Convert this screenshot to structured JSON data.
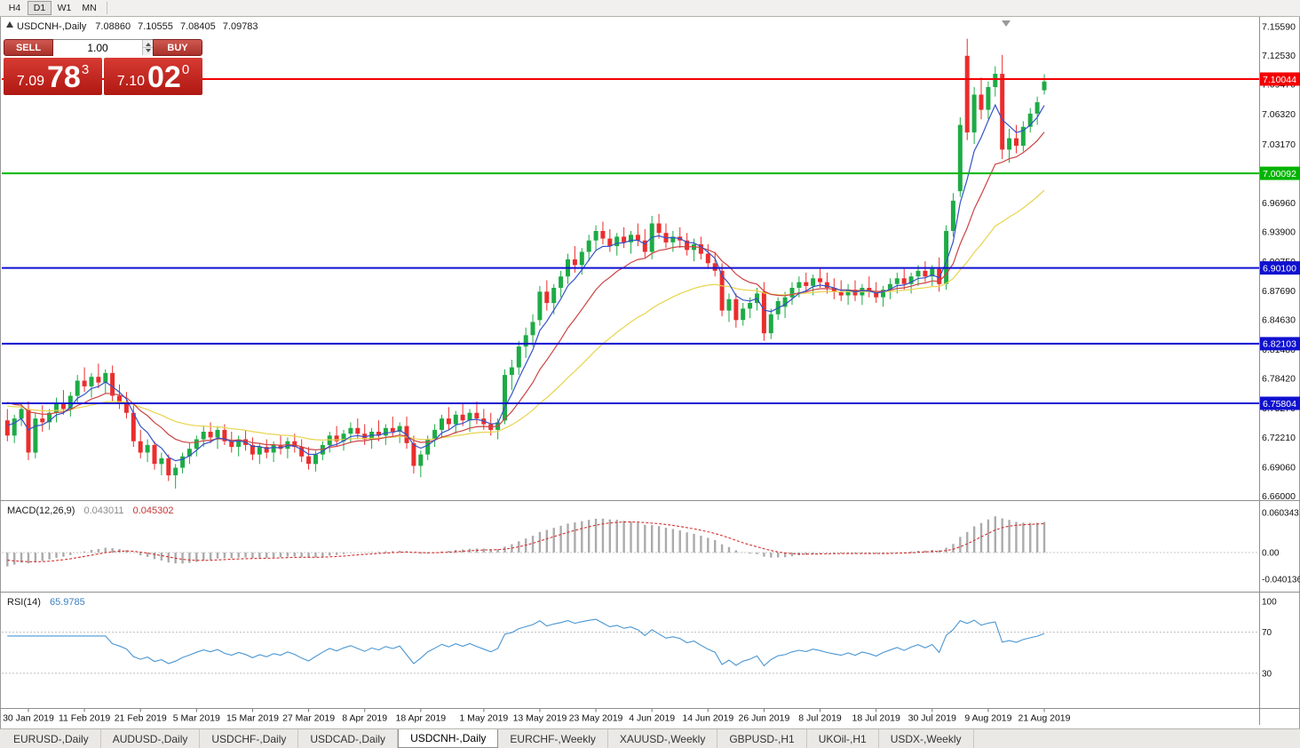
{
  "toolbar": {
    "timeframes": [
      "H4",
      "D1",
      "W1",
      "MN"
    ],
    "active": "D1"
  },
  "chart_header": {
    "symbol": "USDCNH-,Daily",
    "open": "7.08860",
    "high": "7.10555",
    "low": "7.08405",
    "close": "7.09783"
  },
  "trade_panel": {
    "sell_label": "SELL",
    "buy_label": "BUY",
    "volume": "1.00",
    "bid": {
      "prefix": "7.09",
      "pips": "78",
      "point": "3"
    },
    "ask": {
      "prefix": "7.10",
      "pips": "02",
      "point": "0"
    }
  },
  "levels": [
    {
      "name": "resistance-7-10044",
      "price": 7.10044,
      "label": "7.10044",
      "color": "#f40000"
    },
    {
      "name": "round-number-7-00092",
      "price": 7.00092,
      "label": "7.00092",
      "color": "#00b400"
    },
    {
      "name": "support-6-90100",
      "price": 6.901,
      "label": "6.90100",
      "color": "#1010d0"
    },
    {
      "name": "support-6-82103",
      "price": 6.82103,
      "label": "6.82103",
      "color": "#1010d0"
    },
    {
      "name": "support-6-75804",
      "price": 6.75804,
      "label": "6.75804",
      "color": "#1010d0"
    }
  ],
  "indicators": {
    "macd": {
      "label": "MACD(12,26,9)",
      "value_main": "0.043011",
      "value_signal": "0.045302",
      "params": {
        "fast": 12,
        "slow": 26,
        "signal": 9
      },
      "axis_labels": [
        {
          "text": "0.060343",
          "value": 0.060343
        },
        {
          "text": "0.00",
          "value": 0
        },
        {
          "text": "-0.040136",
          "value": -0.040136
        }
      ],
      "hist_color": "#ababab",
      "signal_color": "#d23030"
    },
    "rsi": {
      "label": "RSI(14)",
      "value": "65.9785",
      "period": 14,
      "axis_labels": [
        {
          "text": "100",
          "value": 100
        },
        {
          "text": "70",
          "value": 70
        },
        {
          "text": "30",
          "value": 30
        }
      ],
      "levels": [
        70,
        30
      ],
      "line_color": "#4a96d2"
    }
  },
  "tabs": [
    {
      "label": "EURUSD-,Daily",
      "active": false
    },
    {
      "label": "AUDUSD-,Daily",
      "active": false
    },
    {
      "label": "USDCHF-,Daily",
      "active": false
    },
    {
      "label": "USDCAD-,Daily",
      "active": false
    },
    {
      "label": "USDCNH-,Daily",
      "active": true
    },
    {
      "label": "EURCHF-,Weekly",
      "active": false
    },
    {
      "label": "XAUUSD-,Weekly",
      "active": false
    },
    {
      "label": "GBPUSD-,H1",
      "active": false
    },
    {
      "label": "UKOil-,H1",
      "active": false
    },
    {
      "label": "USDX-,Weekly",
      "active": false
    }
  ],
  "chart_data": {
    "type": "candlestick",
    "symbol": "USDCNH-,Daily",
    "timeframe": "Daily",
    "grid": false,
    "price_axis": {
      "top": 7.1633,
      "bottom": 6.6586,
      "tick_labels": [
        "7.15590",
        "7.12530",
        "7.09470",
        "7.06320",
        "7.03170",
        "7.00110",
        "6.96960",
        "6.93900",
        "6.90750",
        "6.87690",
        "6.84630",
        "6.81480",
        "6.78420",
        "6.75270",
        "6.72210",
        "6.69060",
        "6.66000"
      ]
    },
    "x_labels": [
      {
        "text": "30 Jan 2019",
        "index": 3
      },
      {
        "text": "11 Feb 2019",
        "index": 11
      },
      {
        "text": "21 Feb 2019",
        "index": 19
      },
      {
        "text": "5 Mar 2019",
        "index": 27
      },
      {
        "text": "15 Mar 2019",
        "index": 35
      },
      {
        "text": "27 Mar 2019",
        "index": 43
      },
      {
        "text": "8 Apr 2019",
        "index": 51
      },
      {
        "text": "18 Apr 2019",
        "index": 59
      },
      {
        "text": "1 May 2019",
        "index": 68
      },
      {
        "text": "13 May 2019",
        "index": 76
      },
      {
        "text": "23 May 2019",
        "index": 84
      },
      {
        "text": "4 Jun 2019",
        "index": 92
      },
      {
        "text": "14 Jun 2019",
        "index": 100
      },
      {
        "text": "26 Jun 2019",
        "index": 108
      },
      {
        "text": "8 Jul 2019",
        "index": 116
      },
      {
        "text": "18 Jul 2019",
        "index": 124
      },
      {
        "text": "30 Jul 2019",
        "index": 132
      },
      {
        "text": "9 Aug 2019",
        "index": 140
      },
      {
        "text": "21 Aug 2019",
        "index": 148
      }
    ],
    "colors": {
      "bull": "#1eab46",
      "bear": "#eb2d2d",
      "ma_fast": "#3452c8",
      "ma_mid": "#cc4444",
      "ma_slow": "#e8d44c"
    },
    "moving_averages": [
      {
        "name": "fast",
        "period": 5
      },
      {
        "name": "mid",
        "period": 13
      },
      {
        "name": "slow",
        "period": 34
      }
    ],
    "candles": [
      [
        6.74,
        6.752,
        6.718,
        6.724
      ],
      [
        6.724,
        6.746,
        6.716,
        6.742
      ],
      [
        6.742,
        6.758,
        6.734,
        6.752
      ],
      [
        6.752,
        6.76,
        6.698,
        6.706
      ],
      [
        6.706,
        6.748,
        6.7,
        6.742
      ],
      [
        6.742,
        6.756,
        6.728,
        6.738
      ],
      [
        6.738,
        6.752,
        6.73,
        6.748
      ],
      [
        6.748,
        6.764,
        6.738,
        6.758
      ],
      [
        6.758,
        6.772,
        6.746,
        6.752
      ],
      [
        6.752,
        6.77,
        6.744,
        6.766
      ],
      [
        6.766,
        6.788,
        6.758,
        6.782
      ],
      [
        6.782,
        6.796,
        6.77,
        6.776
      ],
      [
        6.776,
        6.79,
        6.764,
        6.786
      ],
      [
        6.786,
        6.8,
        6.774,
        6.78
      ],
      [
        6.78,
        6.794,
        6.768,
        6.79
      ],
      [
        6.79,
        6.798,
        6.76,
        6.766
      ],
      [
        6.766,
        6.778,
        6.752,
        6.758
      ],
      [
        6.758,
        6.77,
        6.742,
        6.748
      ],
      [
        6.748,
        6.756,
        6.712,
        6.718
      ],
      [
        6.718,
        6.73,
        6.7,
        6.706
      ],
      [
        6.706,
        6.72,
        6.696,
        6.714
      ],
      [
        6.714,
        6.718,
        6.688,
        6.694
      ],
      [
        6.694,
        6.706,
        6.682,
        6.7
      ],
      [
        6.7,
        6.704,
        6.676,
        6.682
      ],
      [
        6.682,
        6.694,
        6.668,
        6.69
      ],
      [
        6.69,
        6.706,
        6.684,
        6.702
      ],
      [
        6.702,
        6.716,
        6.694,
        6.71
      ],
      [
        6.71,
        6.724,
        6.702,
        6.72
      ],
      [
        6.72,
        6.734,
        6.712,
        6.728
      ],
      [
        6.728,
        6.738,
        6.716,
        6.722
      ],
      [
        6.722,
        6.734,
        6.71,
        6.73
      ],
      [
        6.73,
        6.736,
        6.714,
        6.718
      ],
      [
        6.718,
        6.728,
        6.706,
        6.712
      ],
      [
        6.712,
        6.724,
        6.702,
        6.72
      ],
      [
        6.72,
        6.73,
        6.708,
        6.714
      ],
      [
        6.714,
        6.722,
        6.698,
        6.704
      ],
      [
        6.704,
        6.716,
        6.694,
        6.712
      ],
      [
        6.712,
        6.72,
        6.7,
        6.706
      ],
      [
        6.706,
        6.718,
        6.696,
        6.714
      ],
      [
        6.714,
        6.724,
        6.704,
        6.71
      ],
      [
        6.71,
        6.722,
        6.7,
        6.718
      ],
      [
        6.718,
        6.726,
        6.706,
        6.712
      ],
      [
        6.712,
        6.72,
        6.696,
        6.702
      ],
      [
        6.702,
        6.712,
        6.688,
        6.694
      ],
      [
        6.694,
        6.708,
        6.686,
        6.704
      ],
      [
        6.704,
        6.718,
        6.698,
        6.714
      ],
      [
        6.714,
        6.728,
        6.706,
        6.724
      ],
      [
        6.724,
        6.734,
        6.712,
        6.718
      ],
      [
        6.718,
        6.73,
        6.708,
        6.726
      ],
      [
        6.726,
        6.738,
        6.716,
        6.732
      ],
      [
        6.732,
        6.742,
        6.72,
        6.726
      ],
      [
        6.726,
        6.736,
        6.714,
        6.72
      ],
      [
        6.72,
        6.732,
        6.71,
        6.728
      ],
      [
        6.728,
        6.74,
        6.718,
        6.724
      ],
      [
        6.724,
        6.736,
        6.714,
        6.732
      ],
      [
        6.732,
        6.744,
        6.722,
        6.728
      ],
      [
        6.728,
        6.738,
        6.716,
        6.734
      ],
      [
        6.734,
        6.744,
        6.71,
        6.716
      ],
      [
        6.716,
        6.724,
        6.684,
        6.692
      ],
      [
        6.692,
        6.708,
        6.68,
        6.704
      ],
      [
        6.704,
        6.724,
        6.698,
        6.72
      ],
      [
        6.72,
        6.736,
        6.712,
        6.73
      ],
      [
        6.73,
        6.746,
        6.722,
        6.742
      ],
      [
        6.742,
        6.754,
        6.73,
        6.736
      ],
      [
        6.736,
        6.75,
        6.726,
        6.746
      ],
      [
        6.746,
        6.758,
        6.734,
        6.74
      ],
      [
        6.74,
        6.752,
        6.728,
        6.748
      ],
      [
        6.748,
        6.76,
        6.736,
        6.742
      ],
      [
        6.742,
        6.752,
        6.73,
        6.736
      ],
      [
        6.736,
        6.748,
        6.724,
        6.73
      ],
      [
        6.73,
        6.742,
        6.72,
        6.738
      ],
      [
        6.74,
        6.794,
        6.736,
        6.788
      ],
      [
        6.788,
        6.804,
        6.772,
        6.796
      ],
      [
        6.796,
        6.824,
        6.788,
        6.818
      ],
      [
        6.818,
        6.838,
        6.806,
        6.83
      ],
      [
        6.83,
        6.852,
        6.818,
        6.844
      ],
      [
        6.846,
        6.882,
        6.84,
        6.876
      ],
      [
        6.876,
        6.888,
        6.856,
        6.864
      ],
      [
        6.864,
        6.884,
        6.852,
        6.88
      ],
      [
        6.88,
        6.898,
        6.87,
        6.892
      ],
      [
        6.892,
        6.916,
        6.884,
        6.91
      ],
      [
        6.91,
        6.924,
        6.896,
        6.904
      ],
      [
        6.904,
        6.922,
        6.894,
        6.918
      ],
      [
        6.918,
        6.936,
        6.908,
        6.93
      ],
      [
        6.93,
        6.946,
        6.92,
        6.94
      ],
      [
        6.94,
        6.95,
        6.926,
        6.932
      ],
      [
        6.932,
        6.942,
        6.918,
        6.924
      ],
      [
        6.924,
        6.938,
        6.914,
        6.934
      ],
      [
        6.934,
        6.944,
        6.922,
        6.928
      ],
      [
        6.928,
        6.94,
        6.916,
        6.936
      ],
      [
        6.936,
        6.948,
        6.924,
        6.93
      ],
      [
        6.93,
        6.942,
        6.912,
        6.918
      ],
      [
        6.918,
        6.956,
        6.91,
        6.948
      ],
      [
        6.948,
        6.958,
        6.932,
        6.938
      ],
      [
        6.938,
        6.948,
        6.922,
        6.928
      ],
      [
        6.928,
        6.94,
        6.918,
        6.934
      ],
      [
        6.934,
        6.944,
        6.922,
        6.93
      ],
      [
        6.93,
        6.938,
        6.914,
        6.92
      ],
      [
        6.92,
        6.932,
        6.908,
        6.926
      ],
      [
        6.926,
        6.934,
        6.91,
        6.916
      ],
      [
        6.916,
        6.926,
        6.9,
        6.906
      ],
      [
        6.906,
        6.918,
        6.892,
        6.898
      ],
      [
        6.898,
        6.906,
        6.85,
        6.856
      ],
      [
        6.856,
        6.874,
        6.844,
        6.868
      ],
      [
        6.868,
        6.874,
        6.838,
        6.846
      ],
      [
        6.846,
        6.864,
        6.84,
        6.858
      ],
      [
        6.858,
        6.87,
        6.848,
        6.864
      ],
      [
        6.864,
        6.88,
        6.856,
        6.874
      ],
      [
        6.876,
        6.886,
        6.824,
        6.832
      ],
      [
        6.832,
        6.858,
        6.826,
        6.852
      ],
      [
        6.852,
        6.87,
        6.846,
        6.866
      ],
      [
        6.86,
        6.876,
        6.848,
        6.87
      ],
      [
        6.87,
        6.886,
        6.862,
        6.88
      ],
      [
        6.88,
        6.892,
        6.87,
        6.886
      ],
      [
        6.886,
        6.896,
        6.876,
        6.882
      ],
      [
        6.882,
        6.894,
        6.872,
        6.89
      ],
      [
        6.89,
        6.9,
        6.88,
        6.886
      ],
      [
        6.886,
        6.896,
        6.874,
        6.88
      ],
      [
        6.88,
        6.89,
        6.868,
        6.876
      ],
      [
        6.876,
        6.888,
        6.866,
        6.872
      ],
      [
        6.872,
        6.884,
        6.862,
        6.878
      ],
      [
        6.878,
        6.888,
        6.866,
        6.872
      ],
      [
        6.872,
        6.884,
        6.862,
        6.88
      ],
      [
        6.88,
        6.892,
        6.87,
        6.876
      ],
      [
        6.876,
        6.886,
        6.864,
        6.87
      ],
      [
        6.87,
        6.882,
        6.86,
        6.878
      ],
      [
        6.878,
        6.89,
        6.868,
        6.884
      ],
      [
        6.884,
        6.896,
        6.874,
        6.89
      ],
      [
        6.89,
        6.9,
        6.878,
        6.884
      ],
      [
        6.884,
        6.896,
        6.874,
        6.892
      ],
      [
        6.892,
        6.904,
        6.882,
        6.898
      ],
      [
        6.898,
        6.908,
        6.886,
        6.892
      ],
      [
        6.892,
        6.904,
        6.882,
        6.9
      ],
      [
        6.9,
        6.912,
        6.876,
        6.884
      ],
      [
        6.884,
        6.946,
        6.878,
        6.94
      ],
      [
        6.94,
        6.98,
        6.934,
        6.972
      ],
      [
        6.982,
        7.06,
        6.976,
        7.052
      ],
      [
        7.125,
        7.143,
        7.036,
        7.044
      ],
      [
        7.044,
        7.092,
        7.032,
        7.084
      ],
      [
        7.084,
        7.102,
        7.058,
        7.068
      ],
      [
        7.068,
        7.098,
        7.058,
        7.092
      ],
      [
        7.092,
        7.114,
        7.082,
        7.106
      ],
      [
        7.106,
        7.126,
        7.016,
        7.026
      ],
      [
        7.026,
        7.048,
        7.012,
        7.038
      ],
      [
        7.038,
        7.052,
        7.022,
        7.03
      ],
      [
        7.03,
        7.056,
        7.024,
        7.05
      ],
      [
        7.05,
        7.07,
        7.044,
        7.064
      ],
      [
        7.064,
        7.082,
        7.052,
        7.076
      ],
      [
        7.0886,
        7.10555,
        7.08405,
        7.09783
      ]
    ]
  }
}
